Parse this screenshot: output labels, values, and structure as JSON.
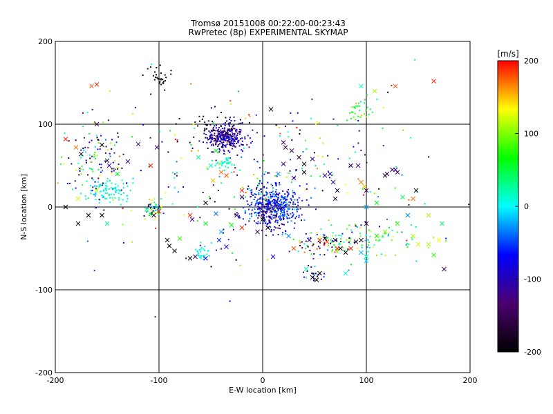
{
  "chart_data": {
    "type": "scatter",
    "title": "Tromsø 20151008 00:22:00-00:23:43",
    "subtitle": "RwPretec (8p) EXPERIMENTAL SKYMAP",
    "xlabel": "E-W location [km]",
    "ylabel": "N-S location [km]",
    "xlim": [
      -200,
      200
    ],
    "ylim": [
      -200,
      200
    ],
    "x_ticks": [
      "-200",
      "-100",
      "0",
      "100",
      "200"
    ],
    "y_ticks": [
      "-200",
      "-100",
      "0",
      "100",
      "200"
    ],
    "grid": true,
    "colorbar": {
      "label": "[m/s]",
      "min": -200,
      "max": 200,
      "ticks": [
        "-200",
        "-100",
        "0",
        "100",
        "200"
      ],
      "colormap": [
        "#000000",
        "#4b006e",
        "#0000ff",
        "#00ffff",
        "#00ff00",
        "#ffff00",
        "#ff0000"
      ]
    },
    "clusters": [
      {
        "x": -35,
        "y": 85,
        "sx": 9,
        "sy": 8,
        "vmin": -140,
        "vmax": -60,
        "n": 260
      },
      {
        "x": -40,
        "y": 92,
        "sx": 14,
        "sy": 10,
        "vmin": -210,
        "vmax": -150,
        "n": 70
      },
      {
        "x": 10,
        "y": 2,
        "sx": 13,
        "sy": 13,
        "vmin": -110,
        "vmax": -20,
        "n": 420
      },
      {
        "x": 5,
        "y": -8,
        "sx": 10,
        "sy": 10,
        "vmin": -170,
        "vmax": -90,
        "n": 60
      },
      {
        "x": -150,
        "y": 20,
        "sx": 12,
        "sy": 7,
        "vmin": -20,
        "vmax": 40,
        "n": 90
      },
      {
        "x": -160,
        "y": 60,
        "sx": 15,
        "sy": 25,
        "vmin": -200,
        "vmax": 150,
        "n": 120
      },
      {
        "x": -105,
        "y": -2,
        "sx": 4,
        "sy": 5,
        "vmin": -200,
        "vmax": 150,
        "n": 60
      },
      {
        "x": -100,
        "y": 155,
        "sx": 7,
        "sy": 7,
        "vmin": -210,
        "vmax": -180,
        "n": 30
      },
      {
        "x": -37,
        "y": 52,
        "sx": 5,
        "sy": 4,
        "vmin": 0,
        "vmax": 30,
        "n": 35
      },
      {
        "x": -58,
        "y": -56,
        "sx": 5,
        "sy": 5,
        "vmin": -10,
        "vmax": 20,
        "n": 30
      },
      {
        "x": 90,
        "y": 115,
        "sx": 6,
        "sy": 9,
        "vmin": 20,
        "vmax": 100,
        "n": 30
      },
      {
        "x": 105,
        "y": -40,
        "sx": 25,
        "sy": 12,
        "vmin": -40,
        "vmax": 130,
        "n": 80
      },
      {
        "x": 60,
        "y": -45,
        "sx": 18,
        "sy": 6,
        "vmin": -210,
        "vmax": 200,
        "n": 70
      },
      {
        "x": 50,
        "y": -82,
        "sx": 5,
        "sy": 5,
        "vmin": -200,
        "vmax": 20,
        "n": 20
      },
      {
        "x": 0,
        "y": 40,
        "sx": 80,
        "sy": 55,
        "vmin": -200,
        "vmax": 200,
        "n": 280
      }
    ],
    "crosses": [
      [
        -165,
        146,
        180
      ],
      [
        -160,
        148,
        190
      ],
      [
        165,
        152,
        190
      ],
      [
        128,
        146,
        180
      ],
      [
        108,
        140,
        110
      ],
      [
        95,
        146,
        10
      ],
      [
        -35,
        90,
        -200
      ],
      [
        8,
        118,
        -180
      ],
      [
        -120,
        76,
        -150
      ],
      [
        -102,
        72,
        -110
      ],
      [
        -190,
        82,
        190
      ],
      [
        -180,
        72,
        170
      ],
      [
        -160,
        100,
        -150
      ],
      [
        -175,
        64,
        -190
      ],
      [
        -155,
        75,
        -200
      ],
      [
        -150,
        56,
        -200
      ],
      [
        -130,
        55,
        -120
      ],
      [
        -140,
        40,
        60
      ],
      [
        -148,
        50,
        -110
      ],
      [
        -108,
        50,
        190
      ],
      [
        -160,
        20,
        130
      ],
      [
        -178,
        -20,
        -200
      ],
      [
        -168,
        -10,
        -200
      ],
      [
        -155,
        -10,
        -200
      ],
      [
        -105,
        -10,
        -160
      ],
      [
        -100,
        -5,
        190
      ],
      [
        -112,
        -3,
        20
      ],
      [
        -92,
        -40,
        -190
      ],
      [
        -90,
        -47,
        -190
      ],
      [
        -85,
        -53,
        -200
      ],
      [
        -65,
        -60,
        -120
      ],
      [
        -70,
        -62,
        -200
      ],
      [
        -55,
        -62,
        -90
      ],
      [
        -42,
        -40,
        -60
      ],
      [
        -40,
        -30,
        -20
      ],
      [
        -35,
        -48,
        -100
      ],
      [
        -55,
        -20,
        60
      ],
      [
        -68,
        -15,
        -120
      ],
      [
        -55,
        5,
        -200
      ],
      [
        -45,
        -8,
        -40
      ],
      [
        -30,
        -22,
        60
      ],
      [
        -20,
        -25,
        190
      ],
      [
        -48,
        32,
        150
      ],
      [
        -50,
        50,
        10
      ],
      [
        -62,
        60,
        30
      ],
      [
        -45,
        68,
        60
      ],
      [
        -70,
        -10,
        190
      ],
      [
        -80,
        -38,
        80
      ],
      [
        10,
        -60,
        -80
      ],
      [
        25,
        -35,
        -30
      ],
      [
        30,
        -50,
        180
      ],
      [
        45,
        -40,
        -110
      ],
      [
        60,
        -38,
        -200
      ],
      [
        55,
        -40,
        190
      ],
      [
        70,
        -40,
        -200
      ],
      [
        75,
        -50,
        -200
      ],
      [
        80,
        -55,
        -200
      ],
      [
        85,
        -50,
        190
      ],
      [
        90,
        -42,
        -170
      ],
      [
        95,
        -40,
        -160
      ],
      [
        100,
        -20,
        -150
      ],
      [
        95,
        -55,
        -20
      ],
      [
        100,
        -60,
        20
      ],
      [
        110,
        -35,
        70
      ],
      [
        118,
        -30,
        100
      ],
      [
        130,
        -20,
        80
      ],
      [
        145,
        -35,
        110
      ],
      [
        150,
        -45,
        120
      ],
      [
        160,
        -45,
        110
      ],
      [
        170,
        -40,
        130
      ],
      [
        175,
        -75,
        -150
      ],
      [
        165,
        -58,
        80
      ],
      [
        55,
        -80,
        -200
      ],
      [
        48,
        -85,
        -200
      ],
      [
        52,
        -88,
        -210
      ],
      [
        42,
        -75,
        20
      ],
      [
        62,
        -42,
        180
      ],
      [
        72,
        -50,
        190
      ],
      [
        28,
        68,
        -150
      ],
      [
        20,
        78,
        -150
      ],
      [
        22,
        72,
        -160
      ],
      [
        35,
        60,
        -160
      ],
      [
        40,
        52,
        -200
      ],
      [
        40,
        42,
        -200
      ],
      [
        48,
        58,
        -110
      ],
      [
        20,
        52,
        -120
      ],
      [
        30,
        35,
        -110
      ],
      [
        0,
        -15,
        -200
      ],
      [
        5,
        -25,
        -200
      ],
      [
        -5,
        -30,
        -150
      ],
      [
        -25,
        -10,
        -150
      ],
      [
        -20,
        12,
        -150
      ],
      [
        -35,
        38,
        180
      ],
      [
        -40,
        42,
        170
      ],
      [
        -20,
        20,
        190
      ],
      [
        15,
        40,
        -30
      ],
      [
        60,
        38,
        -110
      ],
      [
        65,
        40,
        -100
      ],
      [
        68,
        30,
        -120
      ],
      [
        70,
        10,
        -150
      ],
      [
        72,
        20,
        -170
      ],
      [
        85,
        50,
        -150
      ],
      [
        92,
        50,
        -130
      ],
      [
        95,
        30,
        170
      ],
      [
        98,
        25,
        150
      ],
      [
        100,
        20,
        -150
      ],
      [
        100,
        0,
        -20
      ],
      [
        110,
        5,
        60
      ],
      [
        118,
        38,
        -180
      ],
      [
        120,
        40,
        -160
      ],
      [
        125,
        45,
        -150
      ],
      [
        128,
        45,
        -110
      ],
      [
        130,
        42,
        -140
      ],
      [
        135,
        12,
        40
      ],
      [
        140,
        -10,
        -30
      ],
      [
        145,
        10,
        170
      ],
      [
        148,
        20,
        -200
      ],
      [
        160,
        -10,
        110
      ],
      [
        173,
        -20,
        40
      ],
      [
        100,
        -65,
        -10
      ],
      [
        80,
        -80,
        10
      ],
      [
        -178,
        10,
        120
      ],
      [
        -150,
        -20,
        30
      ],
      [
        -190,
        0,
        -200
      ]
    ]
  }
}
